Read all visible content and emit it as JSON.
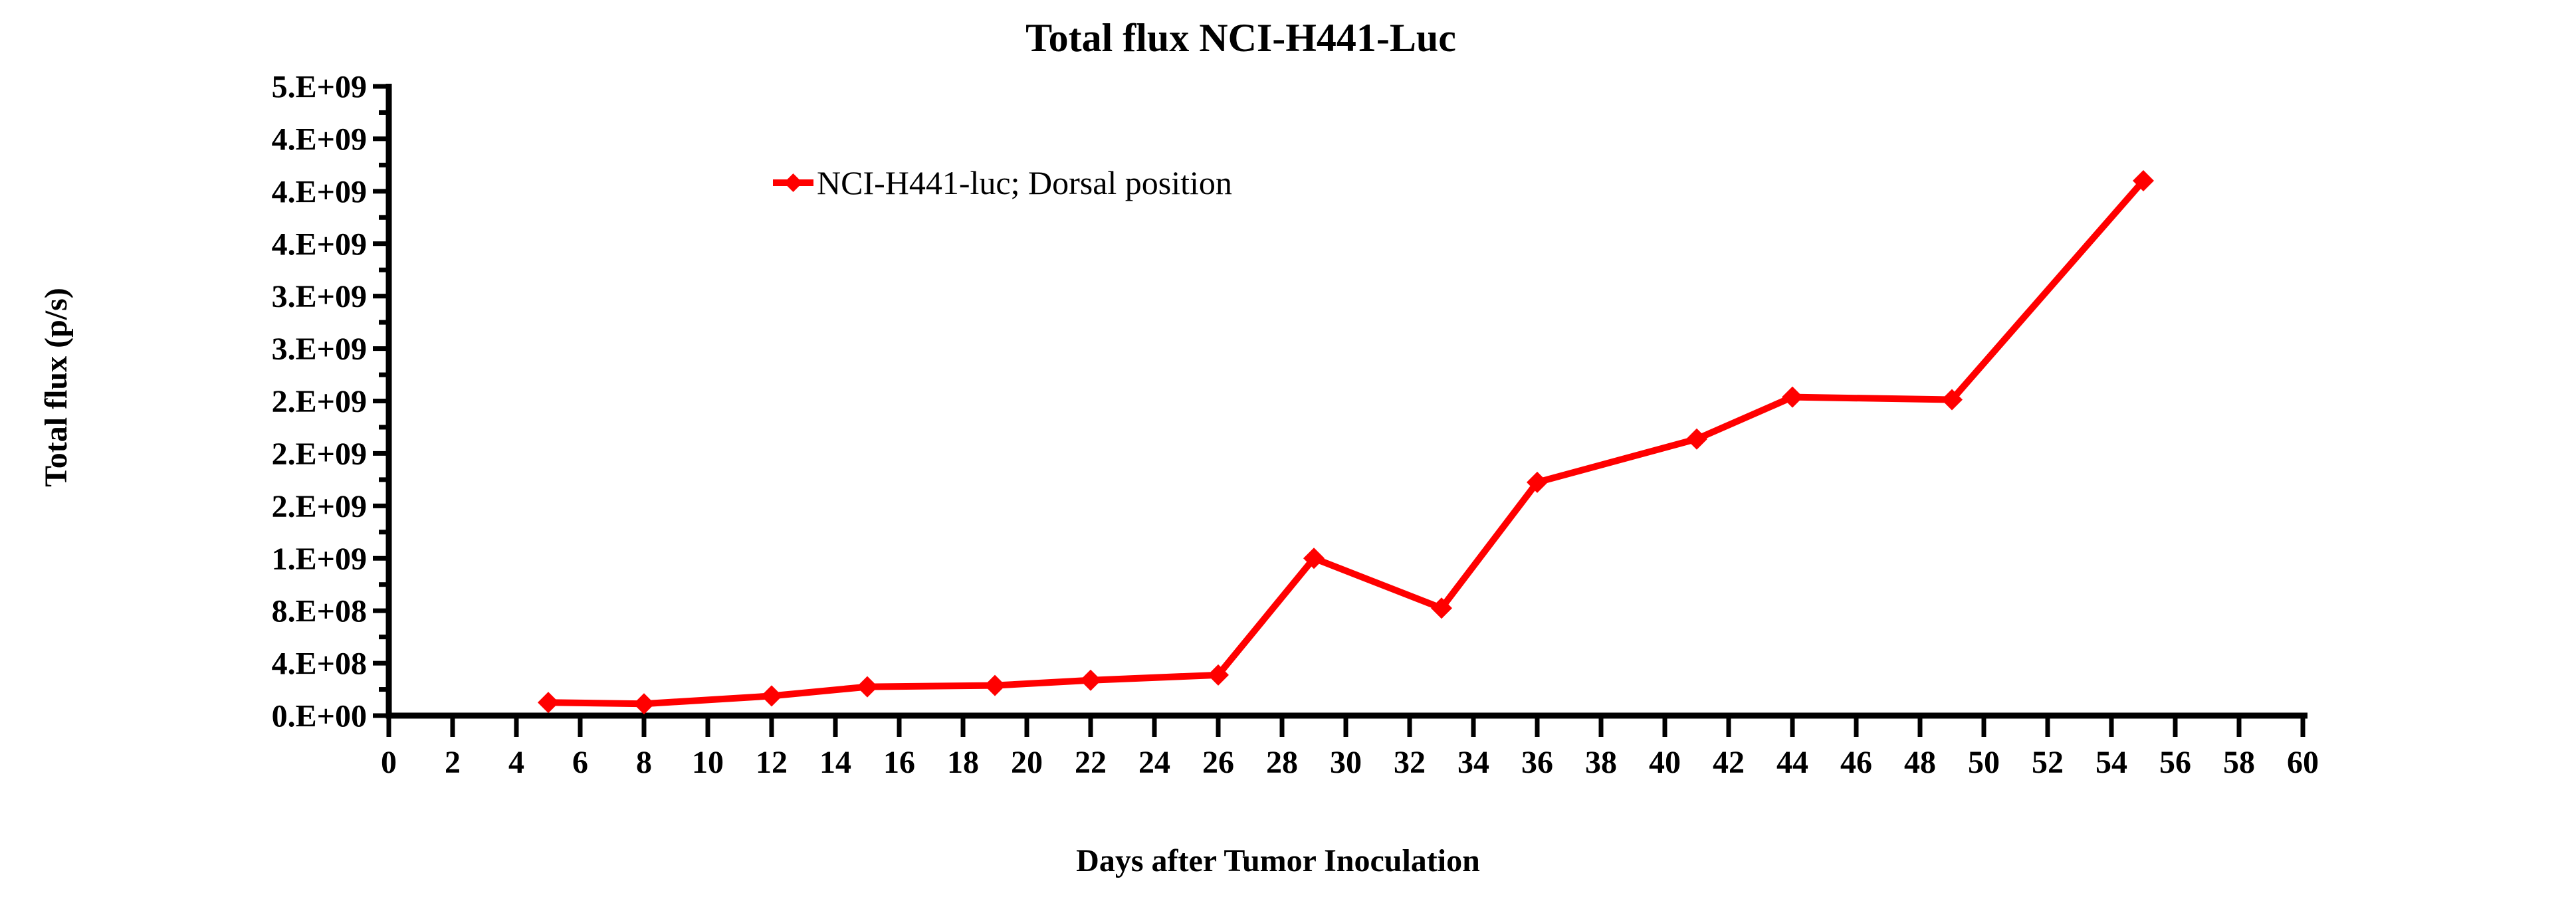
{
  "chart_data": {
    "type": "line",
    "title": "Total flux NCI-H441-Luc",
    "xlabel": "Days after Tumor Inoculation",
    "ylabel": "Total flux  (p/s)",
    "grid": false,
    "legend_position": "inside-upper-left",
    "x": [
      5,
      8,
      12,
      15,
      19,
      22,
      26,
      29,
      33,
      36,
      41,
      44,
      49,
      55
    ],
    "series": [
      {
        "name": "NCI-H441-luc; Dorsal position",
        "color": "#FF0000",
        "marker": "diamond",
        "values": [
          100000000.0,
          90000000.0,
          150000000.0,
          220000000.0,
          230000000.0,
          270000000.0,
          310000000.0,
          1200000000.0,
          820000000.0,
          1780000000.0,
          2110000000.0,
          2430000000.0,
          2410000000.0,
          4080000000.0
        ]
      }
    ],
    "x_axis": {
      "min": 0,
      "max": 60,
      "tick_step": 2,
      "tick_labels": [
        "0",
        "2",
        "4",
        "6",
        "8",
        "10",
        "12",
        "14",
        "16",
        "18",
        "20",
        "22",
        "24",
        "26",
        "28",
        "30",
        "32",
        "34",
        "36",
        "38",
        "40",
        "42",
        "44",
        "46",
        "48",
        "50",
        "52",
        "54",
        "56",
        "58",
        "60"
      ]
    },
    "y_axis": {
      "min": 0,
      "max": 4800000000.0,
      "major_step": 400000000.0,
      "minor_step": 200000000.0,
      "tick_labels": [
        "0.E+00",
        "4.E+08",
        "8.E+08",
        "1.E+09",
        "2.E+09",
        "2.E+09",
        "2.E+09",
        "3.E+09",
        "3.E+09",
        "4.E+09",
        "4.E+09",
        "4.E+09",
        "5.E+09"
      ]
    },
    "colors": {
      "series": "#FF0000",
      "axis": "#000000",
      "background": "#FFFFFF"
    }
  }
}
